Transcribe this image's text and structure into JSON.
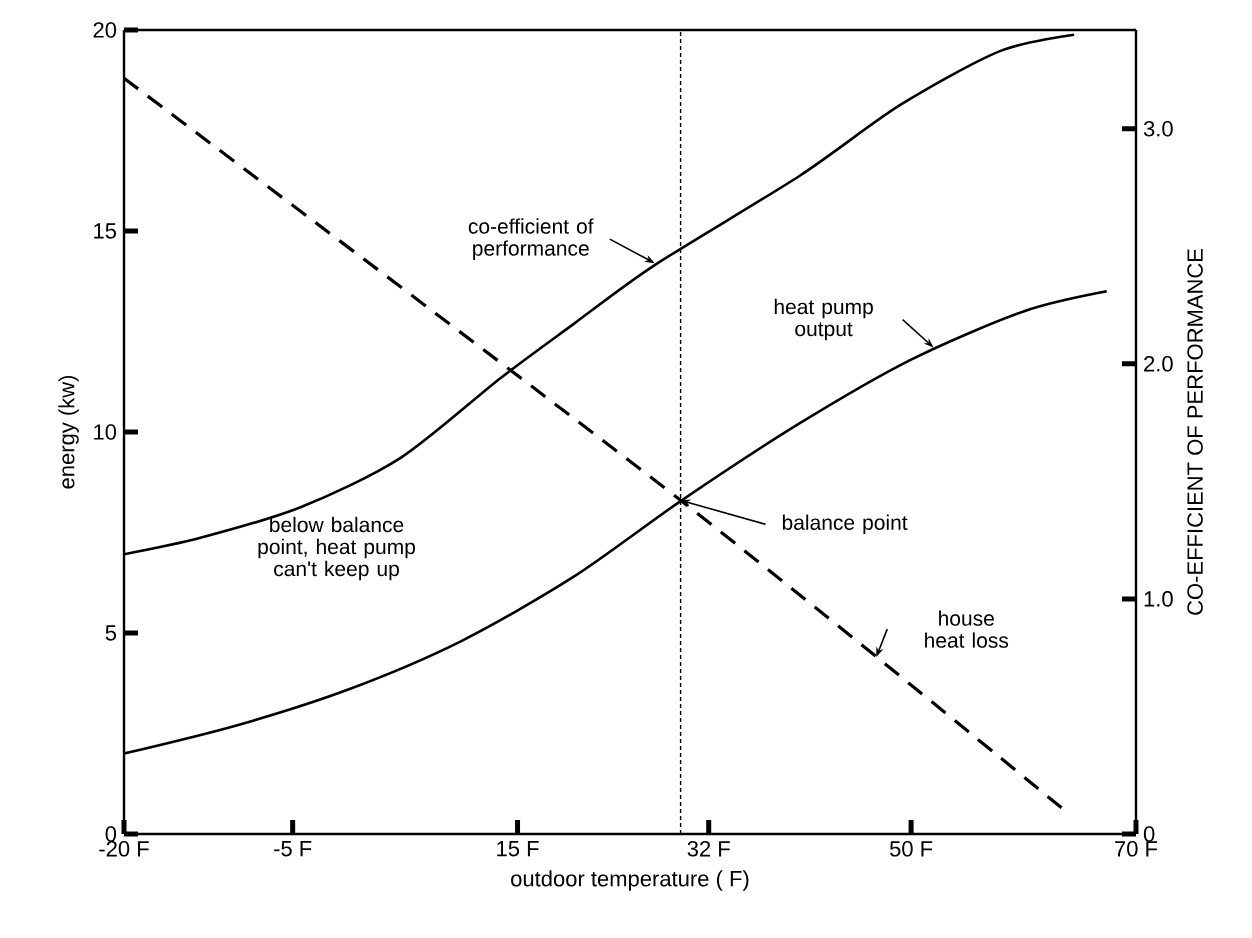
{
  "chart_data": {
    "type": "line",
    "xlabel": "outdoor temperature ( F)",
    "ylabel": "energy (kw)",
    "y2label": "CO-EFFICIENT OF PERFORMANCE",
    "xlim": [
      -20,
      70
    ],
    "ylim": [
      0,
      20
    ],
    "y2lim": [
      0,
      3.42
    ],
    "xticks": [
      {
        "value": -20,
        "label": "-20 F"
      },
      {
        "value": -5,
        "label": "-5 F"
      },
      {
        "value": 15,
        "label": "15 F"
      },
      {
        "value": 32,
        "label": "32 F"
      },
      {
        "value": 50,
        "label": "50 F"
      },
      {
        "value": 70,
        "label": "70 F"
      }
    ],
    "yticks": [
      0,
      5,
      10,
      15,
      20
    ],
    "y2ticks": [
      0,
      {
        "value": 1,
        "label": "1.0"
      },
      {
        "value": 2,
        "label": "2.0"
      },
      {
        "value": 3,
        "label": "3.0"
      }
    ],
    "series": [
      {
        "color": "#000000",
        "line_style": "dashed",
        "x": [
          -20,
          29.5,
          63.6
        ],
        "values": [
          18.8,
          8.3,
          0.6
        ]
      },
      {
        "color": "#000000",
        "line_style": "solid",
        "x": [
          -20,
          -10,
          0,
          10,
          20,
          29.6,
          40,
          50,
          60,
          67.4
        ],
        "values": [
          2.0,
          2.7,
          3.6,
          4.8,
          6.4,
          8.3,
          10.2,
          11.8,
          13.0,
          13.5
        ]
      },
      {
        "color": "#000000",
        "line_style": "solid",
        "axis": "y2",
        "x": [
          -20,
          -13.2,
          -4.3,
          4.6,
          13.5,
          20,
          27.2,
          40.1,
          49,
          57.9,
          64.5
        ],
        "values": [
          1.19,
          1.26,
          1.39,
          1.6,
          1.94,
          2.17,
          2.42,
          2.8,
          3.1,
          3.33,
          3.4
        ]
      }
    ],
    "ref_lines": [
      {
        "axis": "x",
        "value": 29.5,
        "line_style": "dashed",
        "color": "#000000"
      }
    ],
    "annotations": [
      {
        "text": "co-efficient of performance",
        "x": 27.2,
        "y": 14.2
      },
      {
        "text": "heat pump output",
        "x": 52,
        "y": 12.1
      },
      {
        "text": "balance point",
        "x": 29.5,
        "y": 8.3
      },
      {
        "text": "house heat loss",
        "x": 46.9,
        "y": 4.4
      },
      "below balance point, heat pump can't keep up"
    ]
  }
}
